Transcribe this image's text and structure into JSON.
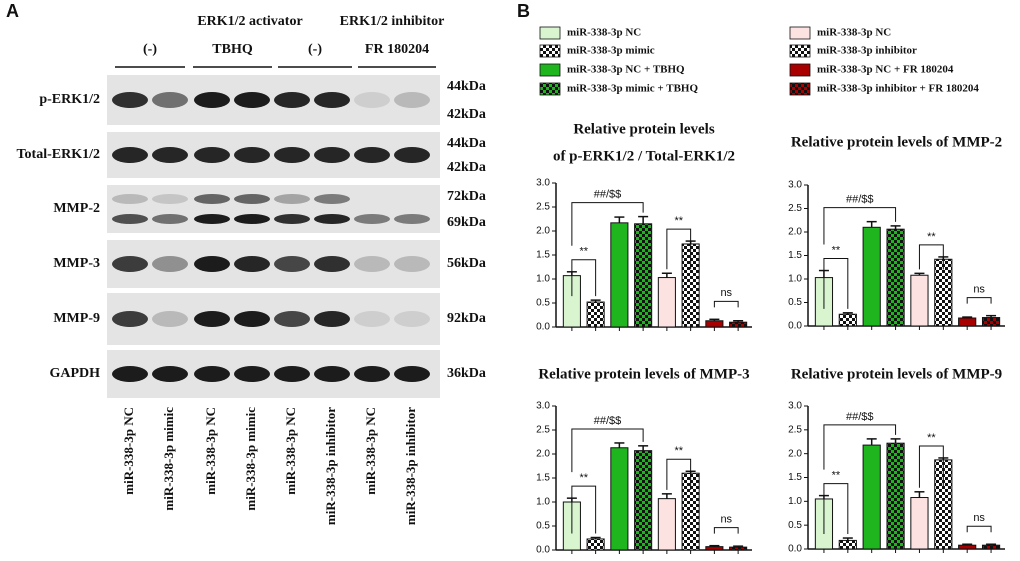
{
  "panel_labels": [
    "A",
    "B"
  ],
  "blot": {
    "headers": [
      "ERK1/2 activator",
      "ERK1/2 inhibitor"
    ],
    "groups": [
      "(-)",
      "TBHQ",
      "(-)",
      "FR 180204"
    ],
    "rows": [
      {
        "label": "p-ERK1/2",
        "kda": [
          "44kDa",
          "42kDa"
        ]
      },
      {
        "label": "Total-ERK1/2",
        "kda": [
          "44kDa",
          "42kDa"
        ]
      },
      {
        "label": "MMP-2",
        "kda": [
          "72kDa",
          "69kDa"
        ]
      },
      {
        "label": "MMP-3",
        "kda": [
          "56kDa"
        ]
      },
      {
        "label": "MMP-9",
        "kda": [
          "92kDa"
        ]
      },
      {
        "label": "GAPDH",
        "kda": [
          "36kDa"
        ]
      }
    ],
    "lanes": [
      "miR-338-3p NC",
      "miR-338-3p mimic",
      "miR-338-3p NC",
      "miR-338-3p mimic",
      "miR-338-3p NC",
      "miR-338-3p inhibitor",
      "miR-338-3p NC",
      "miR-338-3p inhibitor"
    ]
  },
  "legend": [
    {
      "name": "miR-338-3p NC",
      "color": "#d8f5d0",
      "pattern": "solid"
    },
    {
      "name": "miR-338-3p mimic",
      "color": "#ffffff",
      "pattern": "checker"
    },
    {
      "name": "miR-338-3p NC + TBHQ",
      "color": "#1fb51f",
      "pattern": "solid"
    },
    {
      "name": "miR-338-3p mimic + TBHQ",
      "color": "#1fb51f",
      "pattern": "checker"
    },
    {
      "name": "miR-338-3p NC",
      "color": "#fde2e2",
      "pattern": "solid"
    },
    {
      "name": "miR-338-3p inhibitor",
      "color": "#ffffff",
      "pattern": "checker"
    },
    {
      "name": "miR-338-3p NC + FR 180204",
      "color": "#a80000",
      "pattern": "solid"
    },
    {
      "name": "miR-338-3p inhibitor + FR 180204",
      "color": "#a80000",
      "pattern": "checker"
    }
  ],
  "chart_data": [
    {
      "type": "bar",
      "title": [
        "Relative protein levels",
        "of p-ERK1/2 / Total-ERK1/2"
      ],
      "values": [
        1.07,
        0.52,
        2.17,
        2.15,
        1.03,
        1.73,
        0.13,
        0.1
      ],
      "errors": [
        0.08,
        0.04,
        0.12,
        0.15,
        0.09,
        0.06,
        0.03,
        0.03
      ],
      "ylim": [
        0,
        3
      ],
      "yticks": [
        {
          "value": 0,
          "label": "0.0"
        },
        0.5,
        {
          "value": 1,
          "label": "1.0"
        },
        1.5,
        {
          "value": 2,
          "label": "2.0"
        },
        2.5,
        {
          "value": 3,
          "label": "3.0"
        }
      ],
      "annotations": [
        "**",
        "##/$$",
        "**",
        "ns"
      ]
    },
    {
      "type": "bar",
      "title": [
        "Relative protein levels of MMP-2"
      ],
      "values": [
        1.03,
        0.25,
        2.1,
        2.06,
        1.08,
        1.42,
        0.17,
        0.18
      ],
      "errors": [
        0.15,
        0.03,
        0.12,
        0.07,
        0.04,
        0.05,
        0.02,
        0.04
      ],
      "ylim": [
        0,
        3
      ],
      "yticks": [
        {
          "value": 0,
          "label": "0.0"
        },
        0.5,
        {
          "value": 1,
          "label": "1.0"
        },
        1.5,
        {
          "value": 2,
          "label": "2.0"
        },
        2.5,
        {
          "value": 3,
          "label": "3.0"
        }
      ],
      "annotations": [
        "**",
        "##/$$",
        "**",
        "ns"
      ]
    },
    {
      "type": "bar",
      "title": [
        "Relative protein levels of MMP-3"
      ],
      "values": [
        1.0,
        0.23,
        2.13,
        2.07,
        1.07,
        1.6,
        0.07,
        0.06
      ],
      "errors": [
        0.08,
        0.03,
        0.1,
        0.1,
        0.1,
        0.04,
        0.02,
        0.02
      ],
      "ylim": [
        0,
        3
      ],
      "yticks": [
        {
          "value": 0,
          "label": "0.0"
        },
        0.5,
        {
          "value": 1,
          "label": "1.0"
        },
        1.5,
        {
          "value": 2,
          "label": "2.0"
        },
        2.5,
        {
          "value": 3,
          "label": "3.0"
        }
      ],
      "annotations": [
        "**",
        "##/$$",
        "**",
        "ns"
      ]
    },
    {
      "type": "bar",
      "title": [
        "Relative protein levels of MMP-9"
      ],
      "values": [
        1.05,
        0.18,
        2.18,
        2.22,
        1.08,
        1.87,
        0.08,
        0.08
      ],
      "errors": [
        0.07,
        0.05,
        0.13,
        0.09,
        0.12,
        0.04,
        0.02,
        0.02
      ],
      "ylim": [
        0,
        3
      ],
      "yticks": [
        {
          "value": 0,
          "label": "0.0"
        },
        0.5,
        {
          "value": 1,
          "label": "1.0"
        },
        1.5,
        {
          "value": 2,
          "label": "2.0"
        },
        2.5,
        {
          "value": 3,
          "label": "3.0"
        }
      ],
      "annotations": [
        "**",
        "##/$$",
        "**",
        "ns"
      ]
    }
  ]
}
